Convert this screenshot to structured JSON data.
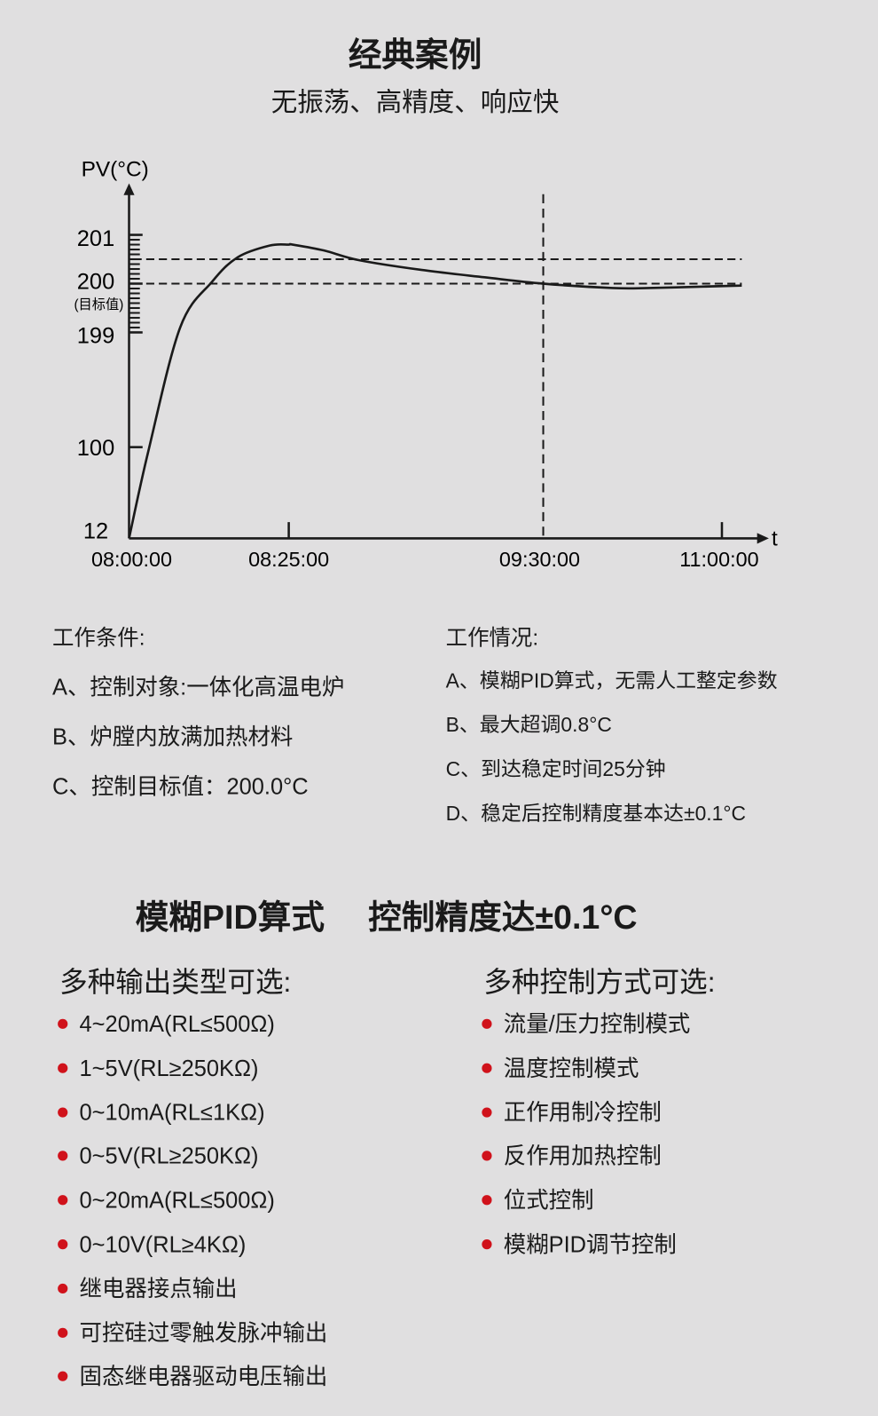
{
  "header": {
    "title": "经典案例",
    "subtitle": "无振荡、高精度、响应快"
  },
  "colors": {
    "background": "#e0dfe0",
    "line": "#1a1a1a",
    "bullet": "#d0121b"
  },
  "chart_data": {
    "type": "line",
    "ylabel": "PV(°C)",
    "xlabel": "t",
    "y_ticks": [
      "201",
      "200",
      "199",
      "100",
      "12"
    ],
    "y_target_label": "(目标值)",
    "x_ticks": [
      "08:00:00",
      "08:25:00",
      "09:30:00",
      "11:00:00"
    ],
    "y_scale": "non-linear (expanded between 199 and 201)",
    "ylim": [
      12,
      201
    ],
    "xlim": [
      "08:00:00",
      "11:00:00"
    ],
    "minor_tick_step": 0.1,
    "reference_lines": {
      "horizontal": [
        200,
        200.5
      ],
      "vertical": [
        "09:30:00"
      ],
      "style": "dashed"
    },
    "series": [
      {
        "x": [
          "08:00:00",
          "08:03:00",
          "08:08:00",
          "08:13:00",
          "08:17:00",
          "08:22:00",
          "08:25:00",
          "08:26:00",
          "08:34:00",
          "08:43:00",
          "08:59:00",
          "09:15:00",
          "09:30:00",
          "10:05:00",
          "10:23:00",
          "10:51:00",
          "11:10:00"
        ],
        "y": [
          12,
          95.6,
          199.1,
          200.04,
          200.54,
          200.78,
          200.8,
          200.8,
          200.68,
          200.48,
          200.28,
          200.13,
          200.0,
          199.91,
          199.91,
          199.94,
          199.96
        ]
      }
    ],
    "grid": false,
    "legend": "none"
  },
  "conditions": {
    "heading": "工作条件:",
    "items": [
      "A、控制对象:一体化高温电炉",
      "B、炉膛内放满加热材料",
      "C、控制目标值：200.0°C"
    ]
  },
  "situation": {
    "heading": "工作情况:",
    "items": [
      "A、模糊PID算式，无需人工整定参数",
      "B、最大超调0.8°C",
      "C、到达稳定时间25分钟",
      "D、稳定后控制精度基本达±0.1°C"
    ]
  },
  "feature": {
    "left": "模糊PID算式",
    "right": "控制精度达±0.1°C"
  },
  "outputs": {
    "heading": "多种输出类型可选:",
    "items": [
      "4~20mA(RL≤500Ω)",
      "1~5V(RL≥250KΩ)",
      "0~10mA(RL≤1KΩ)",
      "0~5V(RL≥250KΩ)",
      "0~20mA(RL≤500Ω)",
      "0~10V(RL≥4KΩ)",
      "继电器接点输出",
      "可控硅过零触发脉冲输出",
      "固态继电器驱动电压输出"
    ]
  },
  "controls": {
    "heading": "多种控制方式可选:",
    "items": [
      "流量/压力控制模式",
      "温度控制模式",
      "正作用制冷控制",
      "反作用加热控制",
      "位式控制",
      "模糊PID调节控制"
    ]
  }
}
